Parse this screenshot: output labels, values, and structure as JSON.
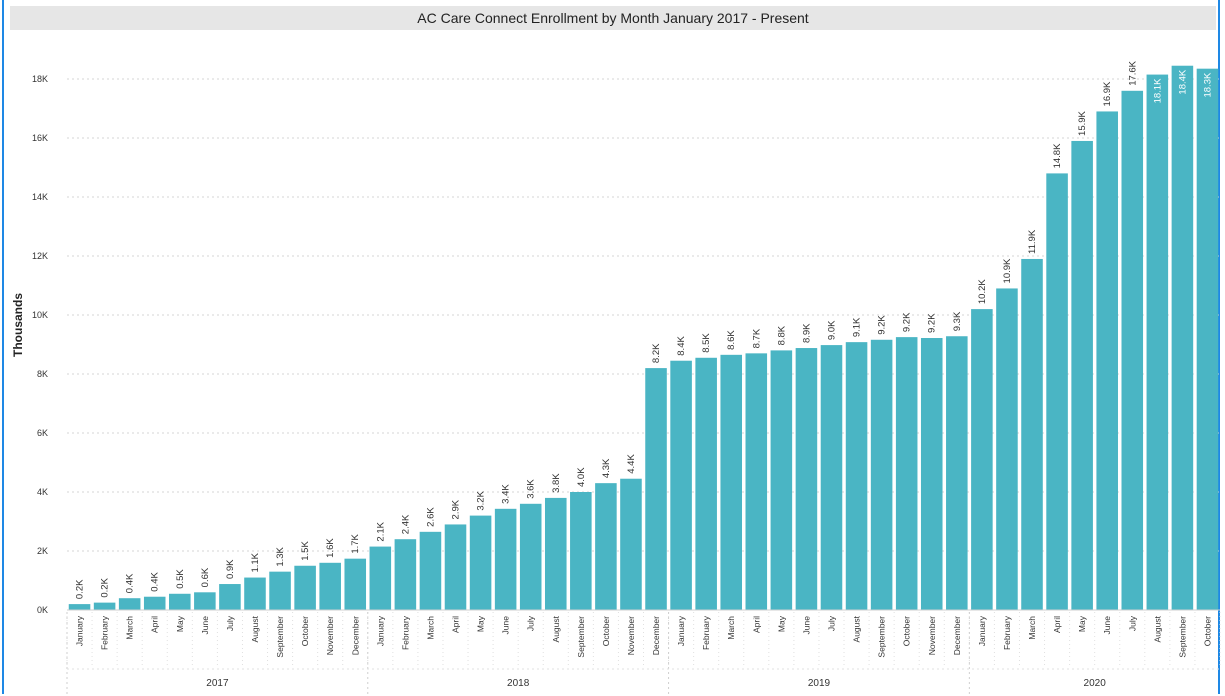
{
  "colors": {
    "bar": "#4ab5c4",
    "grid": "#d6d6d6",
    "text": "#333333"
  },
  "chart_data": {
    "type": "bar",
    "title": "AC Care Connect Enrollment by Month January 2017 - Present",
    "xlabel": "",
    "ylabel": "Thousands",
    "ylim": [
      0,
      18000
    ],
    "yticks": [
      0,
      2000,
      4000,
      6000,
      8000,
      10000,
      12000,
      14000,
      16000,
      18000
    ],
    "ytick_labels": [
      "0K",
      "2K",
      "4K",
      "6K",
      "8K",
      "10K",
      "12K",
      "14K",
      "16K",
      "18K"
    ],
    "grid": true,
    "groups": [
      "2017",
      "2018",
      "2019",
      "2020"
    ],
    "categories": [
      "January",
      "February",
      "March",
      "April",
      "May",
      "June",
      "July",
      "August",
      "September",
      "October",
      "November",
      "December",
      "January",
      "February",
      "March",
      "April",
      "May",
      "June",
      "July",
      "August",
      "September",
      "October",
      "November",
      "December",
      "January",
      "February",
      "March",
      "April",
      "May",
      "June",
      "July",
      "August",
      "September",
      "October",
      "November",
      "December",
      "January",
      "February",
      "March",
      "April",
      "May",
      "June",
      "July",
      "August",
      "September",
      "October"
    ],
    "category_groups": [
      "2017",
      "2017",
      "2017",
      "2017",
      "2017",
      "2017",
      "2017",
      "2017",
      "2017",
      "2017",
      "2017",
      "2017",
      "2018",
      "2018",
      "2018",
      "2018",
      "2018",
      "2018",
      "2018",
      "2018",
      "2018",
      "2018",
      "2018",
      "2018",
      "2019",
      "2019",
      "2019",
      "2019",
      "2019",
      "2019",
      "2019",
      "2019",
      "2019",
      "2019",
      "2019",
      "2019",
      "2020",
      "2020",
      "2020",
      "2020",
      "2020",
      "2020",
      "2020",
      "2020",
      "2020",
      "2020"
    ],
    "values": [
      200,
      250,
      400,
      450,
      550,
      600,
      880,
      1100,
      1300,
      1500,
      1600,
      1740,
      2150,
      2400,
      2650,
      2900,
      3200,
      3430,
      3600,
      3800,
      4000,
      4300,
      4450,
      8200,
      8450,
      8550,
      8650,
      8700,
      8800,
      8880,
      8980,
      9080,
      9160,
      9250,
      9220,
      9280,
      10200,
      10900,
      11900,
      14800,
      15900,
      16900,
      17600,
      18150,
      18450,
      18350
    ],
    "data_labels": [
      "0.2K",
      "0.2K",
      "0.4K",
      "0.4K",
      "0.5K",
      "0.6K",
      "0.9K",
      "1.1K",
      "1.3K",
      "1.5K",
      "1.6K",
      "1.7K",
      "2.1K",
      "2.4K",
      "2.6K",
      "2.9K",
      "3.2K",
      "3.4K",
      "3.6K",
      "3.8K",
      "4.0K",
      "4.3K",
      "4.4K",
      "8.2K",
      "8.4K",
      "8.5K",
      "8.6K",
      "8.7K",
      "8.8K",
      "8.9K",
      "9.0K",
      "9.1K",
      "9.2K",
      "9.2K",
      "9.2K",
      "9.3K",
      "10.2K",
      "10.9K",
      "11.9K",
      "14.8K",
      "15.9K",
      "16.9K",
      "17.6K",
      "18.1K",
      "18.4K",
      "18.3K"
    ],
    "labels_inside": [
      false,
      false,
      false,
      false,
      false,
      false,
      false,
      false,
      false,
      false,
      false,
      false,
      false,
      false,
      false,
      false,
      false,
      false,
      false,
      false,
      false,
      false,
      false,
      false,
      false,
      false,
      false,
      false,
      false,
      false,
      false,
      false,
      false,
      false,
      false,
      false,
      false,
      false,
      false,
      false,
      false,
      false,
      false,
      true,
      true,
      true
    ]
  }
}
